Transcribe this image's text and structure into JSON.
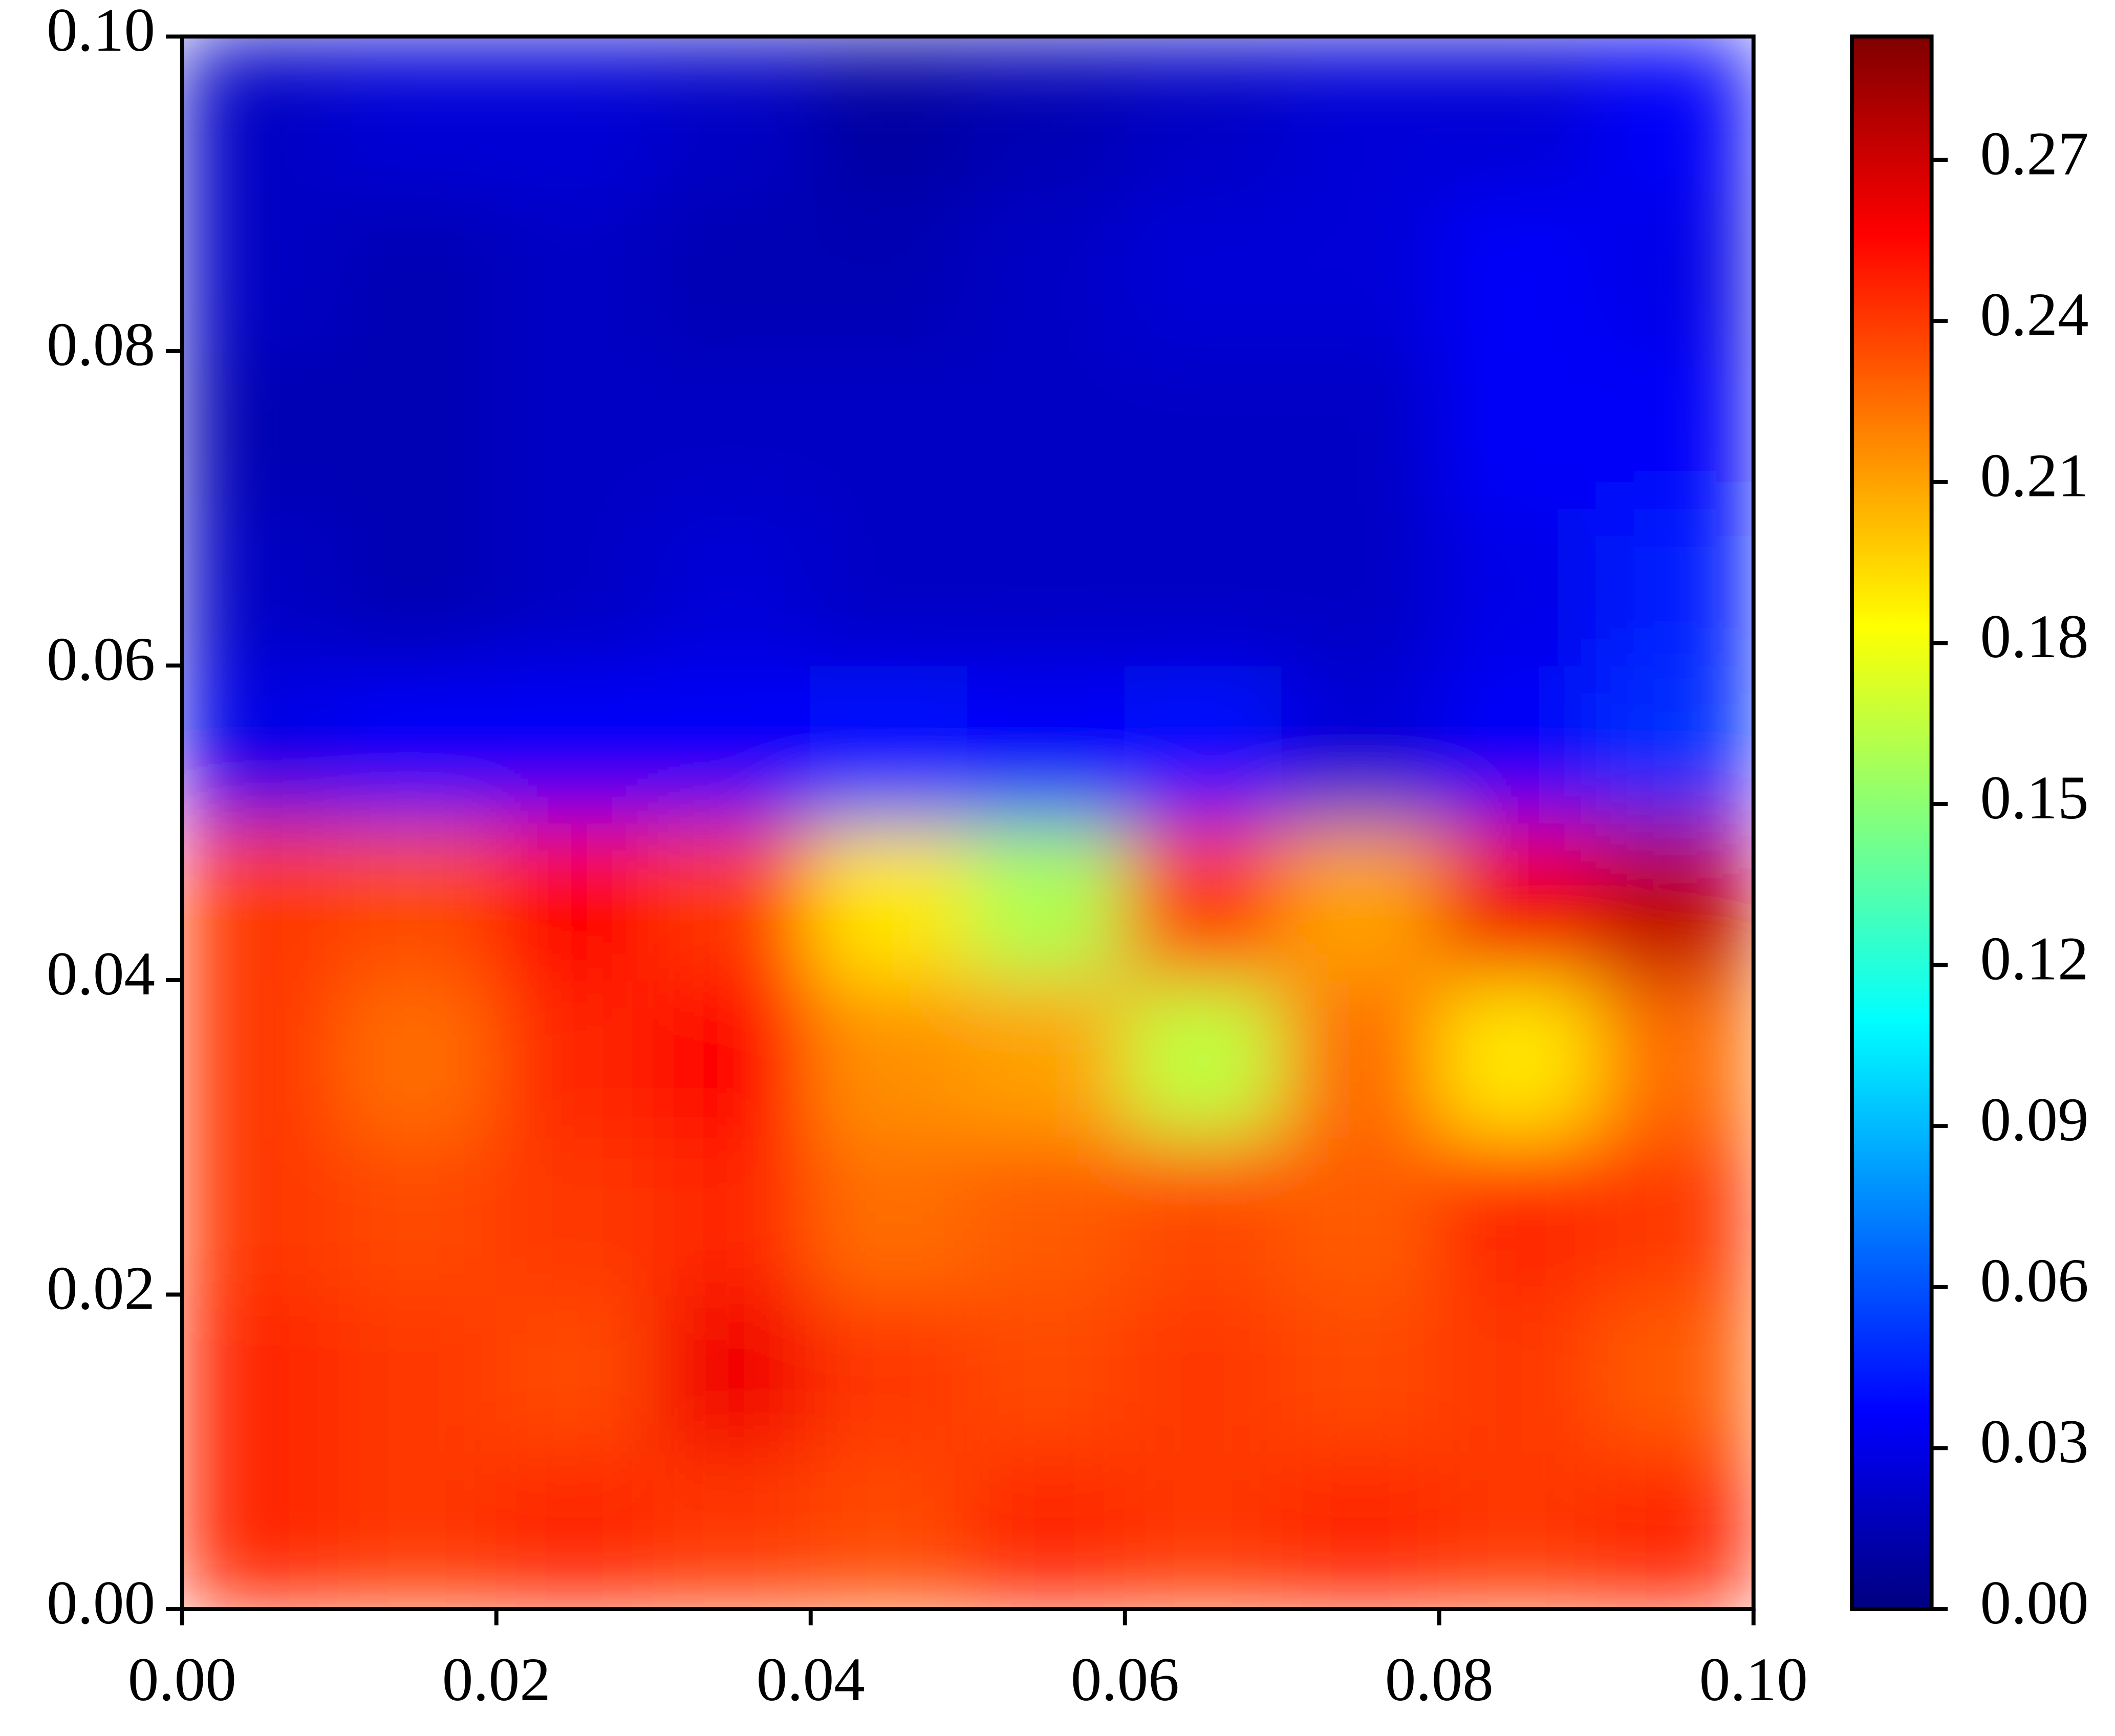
{
  "chart_data": {
    "type": "heatmap",
    "colormap": "jet",
    "x": [
      0.005,
      0.015,
      0.025,
      0.035,
      0.045,
      0.055,
      0.065,
      0.075,
      0.085,
      0.095
    ],
    "y": [
      0.005,
      0.015,
      0.025,
      0.035,
      0.045,
      0.055,
      0.065,
      0.075,
      0.085,
      0.095
    ],
    "z": [
      [
        0.245,
        0.24,
        0.245,
        0.24,
        0.235,
        0.245,
        0.24,
        0.245,
        0.24,
        0.245
      ],
      [
        0.245,
        0.24,
        0.235,
        0.26,
        0.24,
        0.235,
        0.24,
        0.235,
        0.24,
        0.23
      ],
      [
        0.24,
        0.235,
        0.24,
        0.245,
        0.225,
        0.23,
        0.235,
        0.23,
        0.245,
        0.24
      ],
      [
        0.24,
        0.225,
        0.245,
        0.255,
        0.215,
        0.21,
        0.165,
        0.225,
        0.19,
        0.225
      ],
      [
        0.24,
        0.235,
        0.255,
        0.24,
        0.19,
        0.16,
        0.24,
        0.21,
        0.26,
        0.275
      ],
      [
        0.03,
        0.035,
        0.035,
        0.035,
        0.04,
        0.035,
        0.04,
        0.025,
        0.035,
        0.05
      ],
      [
        0.02,
        0.015,
        0.02,
        0.025,
        0.02,
        0.02,
        0.02,
        0.02,
        0.03,
        0.045
      ],
      [
        0.015,
        0.015,
        0.02,
        0.02,
        0.02,
        0.02,
        0.02,
        0.02,
        0.035,
        0.035
      ],
      [
        0.02,
        0.015,
        0.02,
        0.015,
        0.015,
        0.02,
        0.025,
        0.025,
        0.035,
        0.03
      ],
      [
        0.02,
        0.025,
        0.025,
        0.02,
        0.01,
        0.015,
        0.02,
        0.025,
        0.025,
        0.035
      ]
    ],
    "xlim": [
      0,
      0.1
    ],
    "ylim": [
      0,
      0.1
    ],
    "xticks": [
      {
        "value": 0,
        "label": "0.00"
      },
      0.02,
      0.04,
      0.06,
      0.08,
      {
        "value": 0.1,
        "label": "0.10"
      }
    ],
    "yticks": [
      {
        "value": 0,
        "label": "0.00"
      },
      0.02,
      0.04,
      0.06,
      0.08,
      {
        "value": 0.1,
        "label": "0.10"
      }
    ],
    "clim": [
      0,
      0.293
    ],
    "cticks": [
      {
        "value": 0,
        "label": "0.00"
      },
      0.03,
      0.06,
      0.09,
      0.12,
      0.15,
      0.18,
      0.21,
      0.24,
      0.27
    ]
  }
}
